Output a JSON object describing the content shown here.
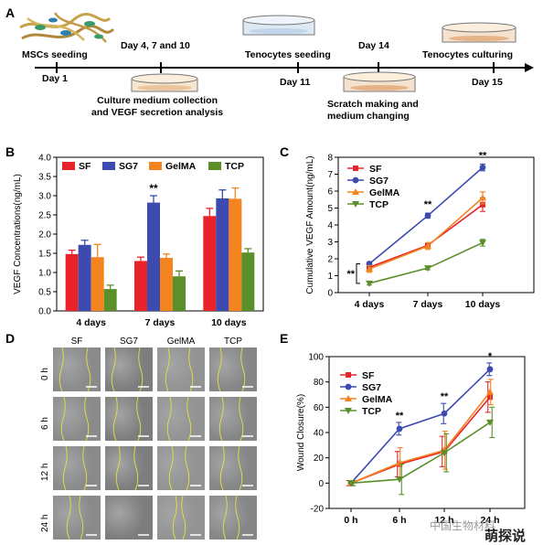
{
  "panelA": {
    "letter": "A",
    "steps_top": [
      "MSCs seeding",
      "Day 4, 7 and 10",
      "Tenocytes seeding",
      "Day 14",
      "Tenocytes culturing"
    ],
    "days_bottom": [
      "Day 1",
      "Day 11",
      "Day 15"
    ],
    "notes_bottom": [
      "Culture medium collection\nand VEGF secretion analysis",
      "Scratch making and\nmedium changing"
    ]
  },
  "panelB": {
    "letter": "B"
  },
  "panelC": {
    "letter": "C"
  },
  "panelD": {
    "letter": "D",
    "columns": [
      "SF",
      "SG7",
      "GelMA",
      "TCP"
    ],
    "rows": [
      "0 h",
      "6 h",
      "12 h",
      "24 h"
    ]
  },
  "panelE": {
    "letter": "E"
  },
  "watermark": {
    "source": "中国生物材料",
    "brand": "萌探说"
  },
  "colors": {
    "SF": "#e8232a",
    "SG7": "#3d4bb0",
    "GelMA": "#f3841f",
    "TCP": "#5b8f2a"
  },
  "chart_data": [
    {
      "type": "bar",
      "panel": "B",
      "ylabel": "VEGF Concentrations(ng/mL)",
      "categories": [
        "4 days",
        "7 days",
        "10 days"
      ],
      "ylim": [
        0,
        4.0
      ],
      "yticks": [
        "0.0",
        "0.5",
        "1.0",
        "1.5",
        "2.0",
        "2.5",
        "3.0",
        "3.5",
        "4.0"
      ],
      "legend": "top",
      "series": [
        {
          "name": "SF",
          "values": [
            1.48,
            1.3,
            2.47
          ],
          "errors": [
            0.1,
            0.1,
            0.2
          ]
        },
        {
          "name": "SG7",
          "values": [
            1.72,
            2.82,
            2.93
          ],
          "errors": [
            0.12,
            0.18,
            0.22
          ]
        },
        {
          "name": "GelMA",
          "values": [
            1.4,
            1.38,
            2.92
          ],
          "errors": [
            0.33,
            0.1,
            0.28
          ]
        },
        {
          "name": "TCP",
          "values": [
            0.57,
            0.9,
            1.52
          ],
          "errors": [
            0.1,
            0.14,
            0.1
          ]
        }
      ],
      "annotations": [
        {
          "text": "**",
          "category": "7 days"
        }
      ]
    },
    {
      "type": "line",
      "panel": "C",
      "ylabel": "Cumulative VEGF Amount(ng/mL)",
      "categories": [
        "4 days",
        "7 days",
        "10 days"
      ],
      "ylim": [
        0,
        8
      ],
      "yticks": [
        "0",
        "1",
        "2",
        "3",
        "4",
        "5",
        "6",
        "7",
        "8"
      ],
      "legend": "top-left",
      "series": [
        {
          "name": "SF",
          "values": [
            1.5,
            2.8,
            5.2
          ],
          "errors": [
            0.15,
            0.15,
            0.4
          ]
        },
        {
          "name": "SG7",
          "values": [
            1.7,
            4.55,
            7.4
          ],
          "errors": [
            0.1,
            0.15,
            0.2
          ]
        },
        {
          "name": "GelMA",
          "values": [
            1.4,
            2.75,
            5.6
          ],
          "errors": [
            0.2,
            0.2,
            0.35
          ]
        },
        {
          "name": "TCP",
          "values": [
            0.55,
            1.45,
            2.95
          ],
          "errors": [
            0.1,
            0.1,
            0.2
          ]
        }
      ],
      "annotations": [
        "**",
        "**",
        "**"
      ]
    },
    {
      "type": "line",
      "panel": "E",
      "ylabel": "Wound Closure(%)",
      "categories": [
        "0 h",
        "6 h",
        "12 h",
        "24 h"
      ],
      "ylim": [
        -20,
        100
      ],
      "yticks": [
        "-20",
        "0",
        "20",
        "40",
        "60",
        "80",
        "100"
      ],
      "legend": "top-left",
      "series": [
        {
          "name": "SF",
          "values": [
            0,
            15,
            25,
            68
          ],
          "errors": [
            2,
            10,
            12,
            12
          ]
        },
        {
          "name": "SG7",
          "values": [
            0,
            43,
            55,
            90
          ],
          "errors": [
            2,
            5,
            8,
            5
          ]
        },
        {
          "name": "GelMA",
          "values": [
            0,
            16,
            26,
            72
          ],
          "errors": [
            2,
            12,
            15,
            10
          ]
        },
        {
          "name": "TCP",
          "values": [
            0,
            3,
            24,
            48
          ],
          "errors": [
            2,
            12,
            15,
            12
          ]
        }
      ],
      "annotations": [
        "**",
        "**",
        "*"
      ]
    }
  ]
}
